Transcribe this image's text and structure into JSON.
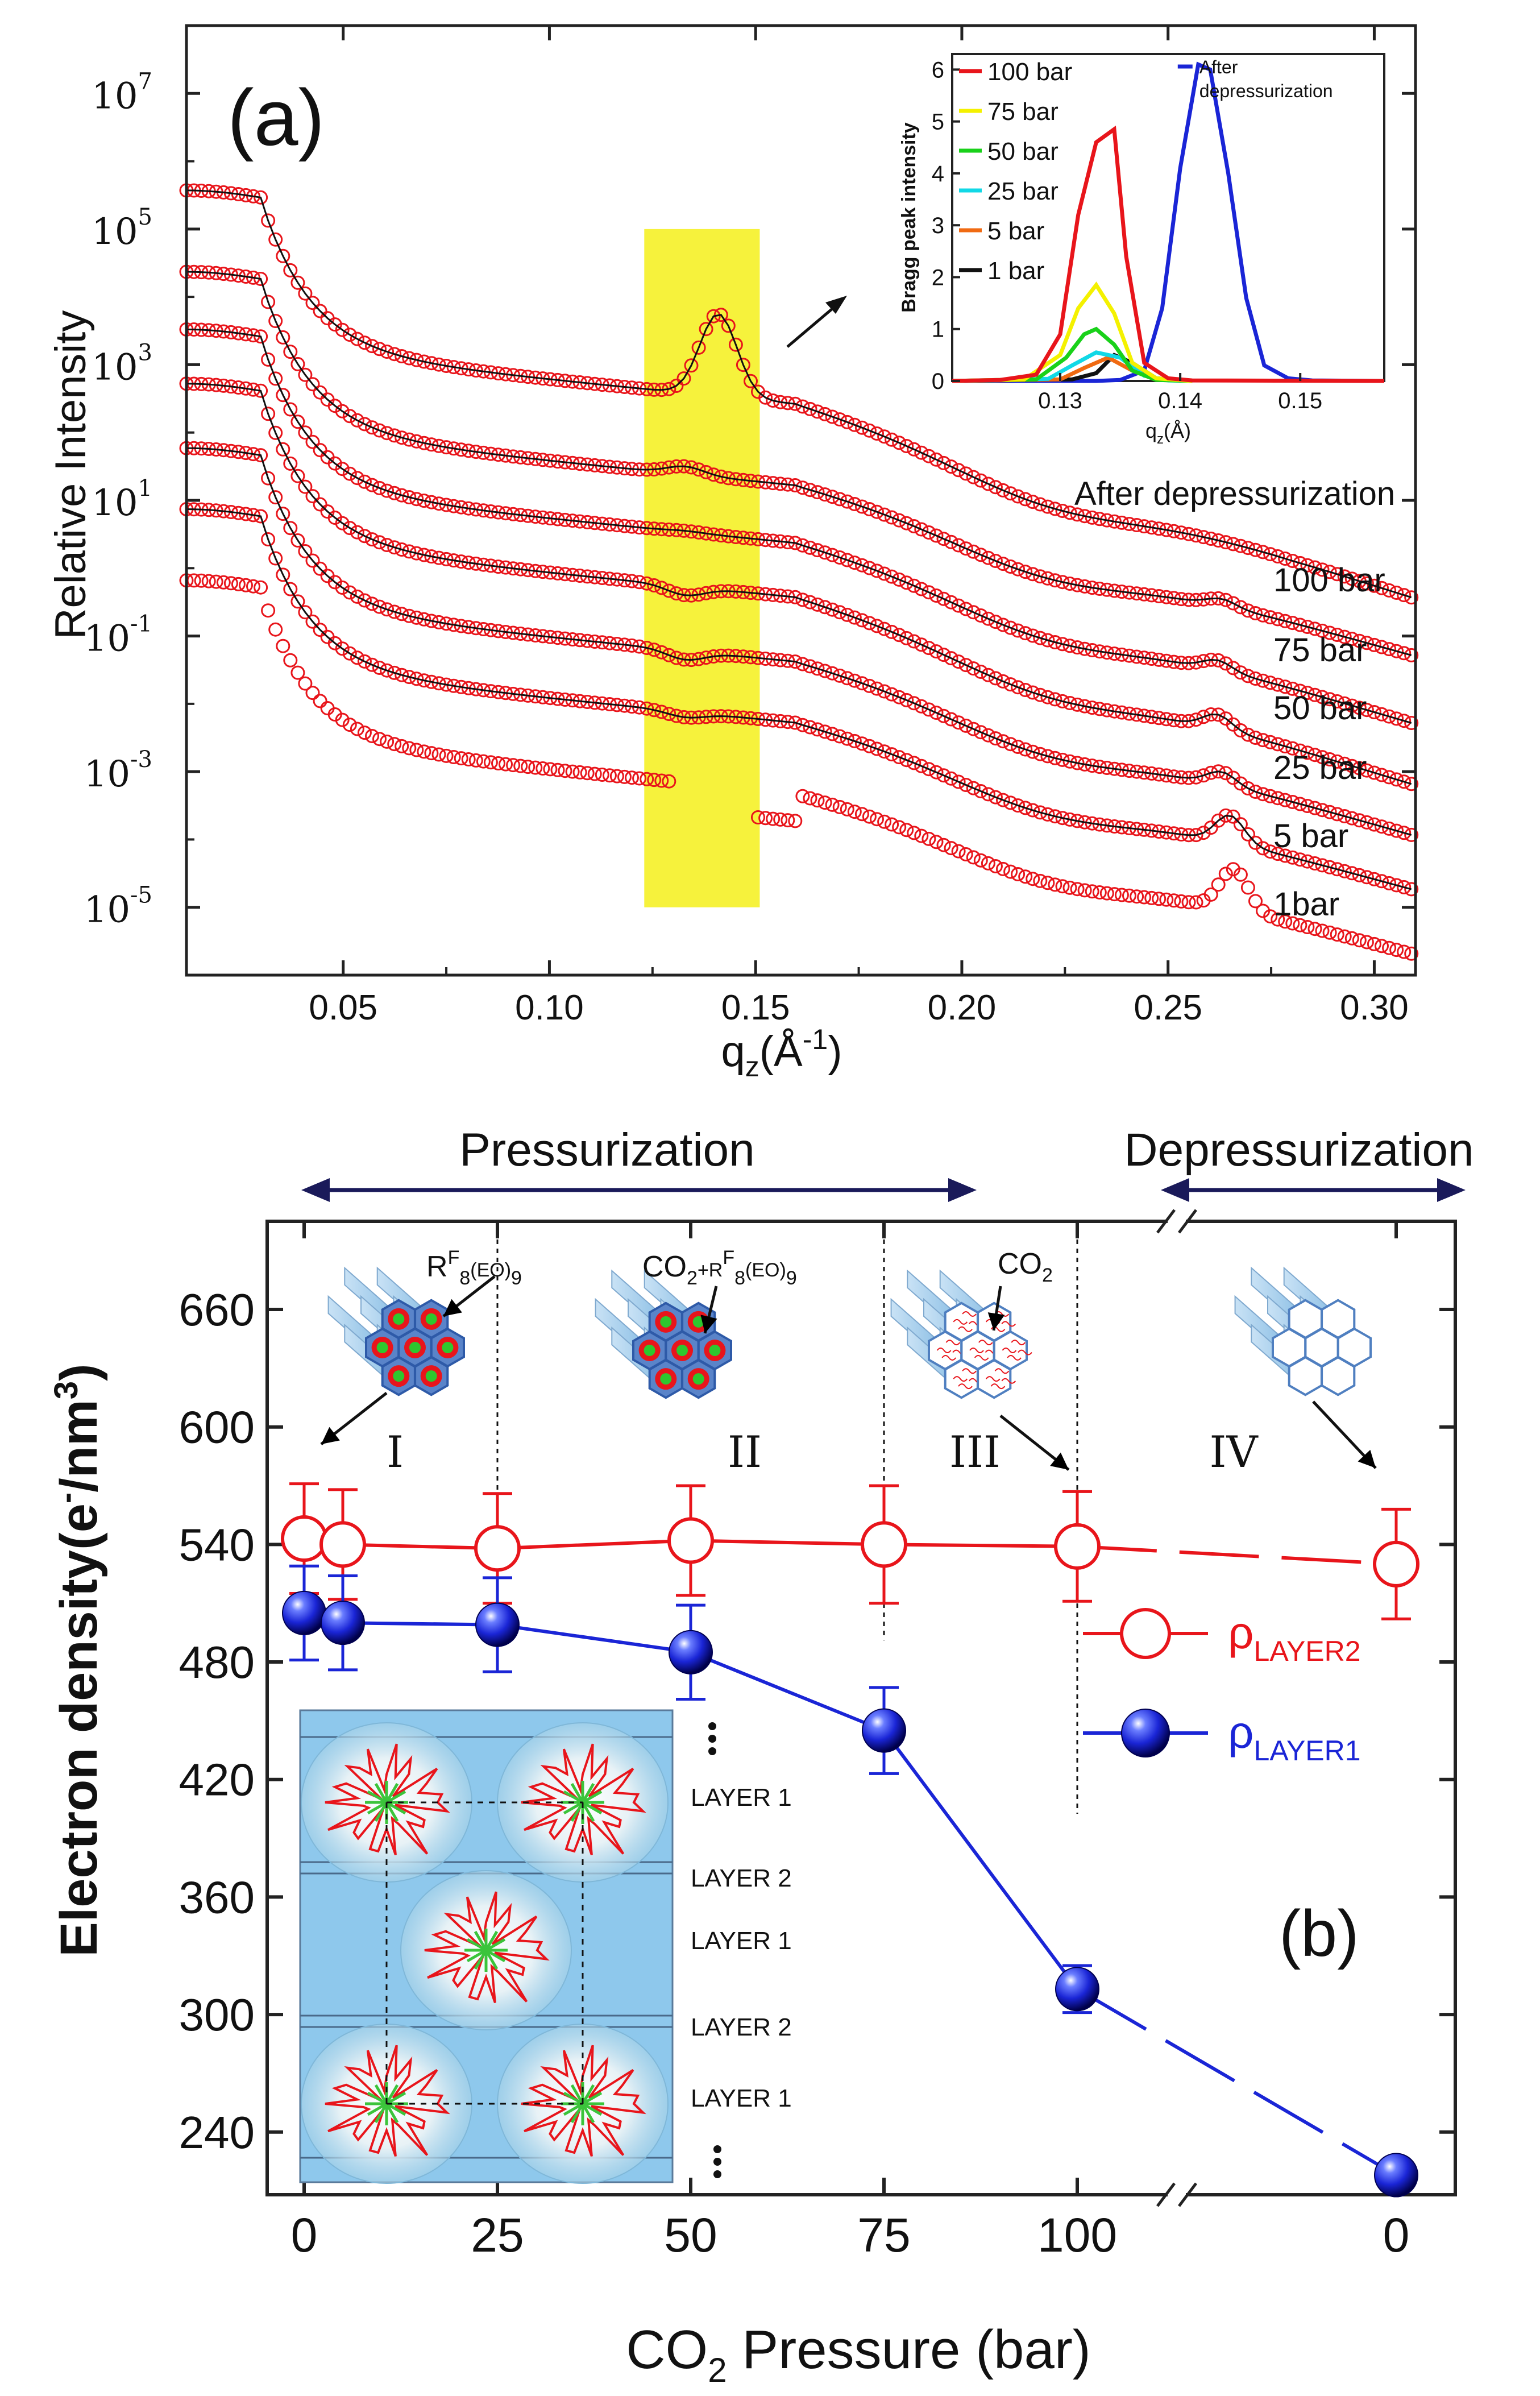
{
  "chart_data": [
    {
      "type": "scatter",
      "panel_label": "(a)",
      "xlabel": "q_z(Å^-1)",
      "ylabel": "Relative Intensity",
      "xlim": [
        0.012,
        0.31
      ],
      "ylim_log10": [
        -6,
        8
      ],
      "yscale": "log",
      "x_ticks": [
        "0.05",
        "0.10",
        "0.15",
        "0.20",
        "0.25",
        "0.30"
      ],
      "x_tick_values": [
        0.05,
        0.1,
        0.15,
        0.2,
        0.25,
        0.3
      ],
      "y_tick_exponents": [
        "7",
        "5",
        "3",
        "1",
        "-1",
        "-3",
        "-5"
      ],
      "y_tick_values": [
        7,
        5,
        3,
        1,
        -1,
        -3,
        -5
      ],
      "highlight_band_x": [
        0.123,
        0.151
      ],
      "fit_line": "black",
      "marker": "open red circle",
      "series": [
        {
          "name": "After depressurization",
          "offset_log10": 5.45,
          "peak1_x": 0.141,
          "peak1_log10": 3.75,
          "peak2_x": 0.281,
          "peak2_log10": -0.1,
          "end_log10": -0.45,
          "band_gap": false
        },
        {
          "name": "100 bar",
          "offset_log10": 4.25,
          "peak1_x": 0.133,
          "peak1_log10": 1.5,
          "peak2_x": 0.263,
          "peak2_log10": -0.6,
          "end_log10": -1.3,
          "band_gap": false
        },
        {
          "name": "75 bar",
          "offset_log10": 3.4,
          "peak1_x": 0.133,
          "peak1_log10": 0.55,
          "peak2_x": 0.262,
          "peak2_log10": -1.5,
          "end_log10": -2.3,
          "band_gap": false
        },
        {
          "name": "50 bar",
          "offset_log10": 2.6,
          "peak1_x": 0.133,
          "peak1_log10": -0.4,
          "peak2_x": 0.262,
          "peak2_log10": -2.3,
          "end_log10": -3.2,
          "band_gap": false
        },
        {
          "name": "25 bar",
          "offset_log10": 1.65,
          "peak1_x": 0.133,
          "peak1_log10": -1.35,
          "peak2_x": 0.263,
          "peak2_log10": -3.15,
          "end_log10": -3.95,
          "band_gap": false
        },
        {
          "name": "5 bar",
          "offset_log10": 0.75,
          "peak1_x": 0.133,
          "peak1_log10": -2.2,
          "peak2_x": 0.265,
          "peak2_log10": -3.8,
          "end_log10": -4.75,
          "band_gap": false
        },
        {
          "name": "1bar",
          "offset_log10": -0.3,
          "peak1_x": null,
          "peak1_log10": null,
          "peak2_x": 0.266,
          "peak2_log10": -4.6,
          "end_log10": -5.7,
          "band_gap": true
        }
      ],
      "inset": {
        "xlabel": "q_z(Å)",
        "ylabel": "Bragg peak intensity",
        "xlim": [
          0.121,
          0.157
        ],
        "ylim": [
          0,
          6.3
        ],
        "x_ticks": [
          "0.13",
          "0.14",
          "0.15"
        ],
        "x_tick_values": [
          0.13,
          0.14,
          0.15
        ],
        "y_ticks": [
          "0",
          "1",
          "2",
          "3",
          "4",
          "5",
          "6"
        ],
        "y_tick_values": [
          0,
          1,
          2,
          3,
          4,
          5,
          6
        ],
        "series": [
          {
            "name": "100 bar",
            "color": "#e8151b",
            "points": [
              [
                0.121,
                0
              ],
              [
                0.125,
                0.02
              ],
              [
                0.128,
                0.12
              ],
              [
                0.13,
                0.9
              ],
              [
                0.1315,
                3.2
              ],
              [
                0.133,
                4.6
              ],
              [
                0.1345,
                4.85
              ],
              [
                0.1355,
                2.4
              ],
              [
                0.137,
                0.35
              ],
              [
                0.139,
                0.05
              ],
              [
                0.141,
                0.01
              ],
              [
                0.157,
                0
              ]
            ]
          },
          {
            "name": "75 bar",
            "color": "#f4f100",
            "points": [
              [
                0.121,
                0
              ],
              [
                0.127,
                0.03
              ],
              [
                0.13,
                0.5
              ],
              [
                0.1315,
                1.4
              ],
              [
                0.133,
                1.85
              ],
              [
                0.1345,
                1.3
              ],
              [
                0.136,
                0.35
              ],
              [
                0.138,
                0.05
              ],
              [
                0.141,
                0
              ]
            ]
          },
          {
            "name": "50 bar",
            "color": "#19d11a",
            "points": [
              [
                0.121,
                0
              ],
              [
                0.128,
                0.03
              ],
              [
                0.1305,
                0.45
              ],
              [
                0.132,
                0.9
              ],
              [
                0.133,
                1.0
              ],
              [
                0.1345,
                0.7
              ],
              [
                0.136,
                0.2
              ],
              [
                0.138,
                0.02
              ],
              [
                0.141,
                0
              ]
            ]
          },
          {
            "name": "25 bar",
            "color": "#11d8e6",
            "points": [
              [
                0.121,
                0
              ],
              [
                0.129,
                0.04
              ],
              [
                0.131,
                0.3
              ],
              [
                0.133,
                0.55
              ],
              [
                0.135,
                0.45
              ],
              [
                0.137,
                0.1
              ],
              [
                0.139,
                0.01
              ],
              [
                0.141,
                0
              ]
            ]
          },
          {
            "name": "5 bar",
            "color": "#f06a12",
            "points": [
              [
                0.121,
                0
              ],
              [
                0.13,
                0.03
              ],
              [
                0.132,
                0.25
              ],
              [
                0.134,
                0.45
              ],
              [
                0.136,
                0.2
              ],
              [
                0.138,
                0.02
              ],
              [
                0.141,
                0
              ]
            ]
          },
          {
            "name": "1 bar",
            "color": "#111111",
            "points": [
              [
                0.121,
                0
              ],
              [
                0.131,
                0.03
              ],
              [
                0.133,
                0.15
              ],
              [
                0.1345,
                0.5
              ],
              [
                0.136,
                0.35
              ],
              [
                0.138,
                0.05
              ],
              [
                0.141,
                0
              ]
            ]
          },
          {
            "name": "After\ndepressurization",
            "color": "#1a25d6",
            "points": [
              [
                0.121,
                0
              ],
              [
                0.133,
                0
              ],
              [
                0.135,
                0.02
              ],
              [
                0.137,
                0.2
              ],
              [
                0.1385,
                1.4
              ],
              [
                0.14,
                4.1
              ],
              [
                0.1415,
                6.1
              ],
              [
                0.1425,
                6.0
              ],
              [
                0.144,
                4.0
              ],
              [
                0.1455,
                1.6
              ],
              [
                0.147,
                0.3
              ],
              [
                0.149,
                0.05
              ],
              [
                0.151,
                0.01
              ],
              [
                0.157,
                0
              ]
            ]
          }
        ]
      }
    },
    {
      "type": "line",
      "panel_label": "(b)",
      "xlabel": "CO2 Pressure (bar)",
      "ylabel": "Electron density(e-/nm3)",
      "ylim": [
        208,
        705
      ],
      "y_ticks": [
        "240",
        "300",
        "360",
        "420",
        "480",
        "540",
        "600",
        "660"
      ],
      "y_tick_values": [
        240,
        300,
        360,
        420,
        480,
        540,
        600,
        660
      ],
      "x_ticks": [
        "0",
        "25",
        "50",
        "75",
        "100",
        "0"
      ],
      "x_tick_positions": [
        0,
        25,
        50,
        75,
        100,
        140
      ],
      "axis_break_position": 112,
      "header_left": "Pressurization",
      "header_right": "Depressurization",
      "regions": [
        "I",
        "II",
        "III",
        "IV"
      ],
      "legend": {
        "layer2": "ρLAYER2",
        "layer1": "ρLAYER1"
      },
      "series": [
        {
          "key": "layer2",
          "name": "ρLAYER2",
          "color": "#e8151b",
          "filled": false,
          "pos": [
            0,
            5,
            25,
            50,
            75,
            100,
            140
          ],
          "pressure_bar": [
            0,
            5,
            25,
            50,
            75,
            100,
            0
          ],
          "values": [
            543,
            540,
            538,
            542,
            540,
            539,
            530
          ],
          "err_plus": [
            28,
            28,
            28,
            28,
            30,
            28,
            28
          ],
          "err_minus": [
            28,
            28,
            28,
            28,
            30,
            28,
            28
          ]
        },
        {
          "key": "layer1",
          "name": "ρLAYER1",
          "color": "#1a25d6",
          "filled": true,
          "pos": [
            0,
            5,
            25,
            50,
            75,
            100,
            140
          ],
          "pressure_bar": [
            0,
            5,
            25,
            50,
            75,
            100,
            0
          ],
          "values": [
            505,
            500,
            499,
            485,
            445,
            313,
            218
          ],
          "err_plus": [
            24,
            24,
            24,
            24,
            22,
            12,
            6
          ],
          "err_minus": [
            24,
            24,
            24,
            24,
            22,
            12,
            6
          ]
        }
      ],
      "dotted_dividers_pos": [
        25,
        75,
        100
      ],
      "annotations": {
        "label_rf8": "RF8(EO)9",
        "label_co2_rf8": "CO2+RF8(EO)9",
        "label_co2": "CO2"
      },
      "inset_labels": [
        "LAYER 1",
        "LAYER 2",
        "LAYER 1",
        "LAYER 2",
        "LAYER 1"
      ]
    }
  ]
}
